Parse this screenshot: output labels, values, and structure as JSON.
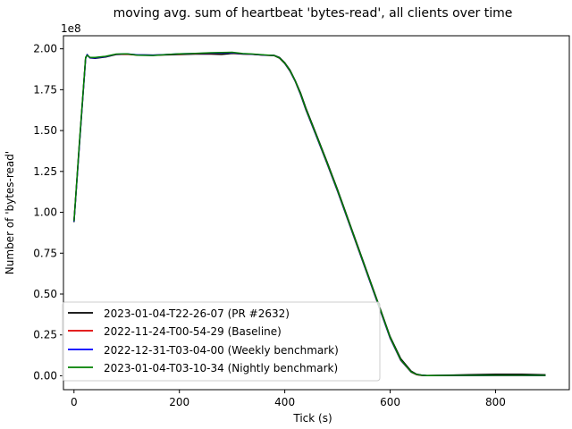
{
  "chart_data": {
    "type": "line",
    "title": "moving avg. sum of heartbeat 'bytes-read', all clients over time",
    "xlabel": "Tick (s)",
    "ylabel": "Number of 'bytes-read'",
    "y_offset_label": "1e8",
    "y_scale": 100000000,
    "xlim": [
      -20,
      940
    ],
    "ylim": [
      -8500000,
      208000000
    ],
    "x_ticks": [
      0,
      200,
      400,
      600,
      800
    ],
    "x_tick_labels": [
      "0",
      "200",
      "400",
      "600",
      "800"
    ],
    "y_ticks": [
      0,
      25000000,
      50000000,
      75000000,
      100000000,
      125000000,
      150000000,
      175000000,
      200000000
    ],
    "y_tick_labels": [
      "0.00",
      "0.25",
      "0.50",
      "0.75",
      "1.00",
      "1.25",
      "1.50",
      "1.75",
      "2.00"
    ],
    "grid": false,
    "legend_position": "lower-left",
    "series": [
      {
        "name": "2023-01-04-T22-26-07 (PR #2632)",
        "color": "#000000",
        "x": [
          0,
          10,
          22,
          25,
          30,
          40,
          60,
          80,
          100,
          120,
          150,
          180,
          200,
          230,
          260,
          280,
          300,
          320,
          340,
          360,
          380,
          390,
          400,
          410,
          420,
          430,
          440,
          460,
          480,
          500,
          520,
          540,
          560,
          580,
          600,
          620,
          640,
          650,
          660,
          670,
          680,
          700,
          750,
          800,
          850,
          895
        ],
        "y": [
          94000000,
          140000000,
          194000000,
          196500000,
          194500000,
          194200000,
          195000000,
          196500000,
          196800000,
          196300000,
          196200000,
          196300000,
          196500000,
          196800000,
          196800000,
          196600000,
          197200000,
          196800000,
          196700000,
          196200000,
          196000000,
          194700000,
          191500000,
          187000000,
          180500000,
          173000000,
          163800000,
          147500000,
          131000000,
          114000000,
          96000000,
          78000000,
          60000000,
          42000000,
          24000000,
          10500000,
          2800000,
          1000000,
          400000,
          200000,
          250000,
          300000,
          700000,
          900000,
          900000,
          600000
        ]
      },
      {
        "name": "2022-11-24-T00-54-29 (Baseline)",
        "color": "#e00000",
        "x": [
          0,
          10,
          22,
          25,
          30,
          40,
          60,
          80,
          100,
          120,
          150,
          180,
          200,
          230,
          260,
          280,
          300,
          320,
          340,
          360,
          380,
          390,
          400,
          410,
          420,
          430,
          440,
          460,
          480,
          500,
          520,
          540,
          560,
          580,
          600,
          620,
          640,
          650,
          660,
          670,
          680,
          700,
          750,
          800,
          850,
          895
        ],
        "y": [
          94500000,
          141000000,
          194500000,
          196200000,
          194700000,
          194600000,
          195300000,
          196600000,
          196700000,
          196200000,
          196000000,
          196500000,
          196800000,
          197000000,
          197300000,
          197400000,
          197500000,
          196900000,
          196600000,
          196100000,
          195800000,
          194300000,
          191000000,
          186300000,
          180000000,
          172000000,
          162800000,
          146500000,
          130000000,
          113000000,
          95000000,
          77000000,
          59000000,
          41000000,
          23000000,
          9500000,
          2200000,
          700000,
          200000,
          100000,
          100000,
          150000,
          150000,
          200000,
          200000,
          150000
        ]
      },
      {
        "name": "2022-12-31-T03-04-00 (Weekly benchmark)",
        "color": "#0000ff",
        "x": [
          0,
          10,
          22,
          25,
          30,
          40,
          60,
          80,
          100,
          120,
          150,
          180,
          200,
          230,
          260,
          280,
          300,
          320,
          340,
          360,
          380,
          390,
          400,
          410,
          420,
          430,
          440,
          460,
          480,
          500,
          520,
          540,
          560,
          580,
          600,
          620,
          640,
          650,
          660,
          670,
          680,
          700,
          750,
          800,
          850,
          895
        ],
        "y": [
          94300000,
          140500000,
          194300000,
          196400000,
          194600000,
          194500000,
          195200000,
          196700000,
          196900000,
          196300000,
          196100000,
          196600000,
          196900000,
          197100000,
          197400000,
          197500000,
          197600000,
          197000000,
          196700000,
          196200000,
          195900000,
          194400000,
          191100000,
          186400000,
          180100000,
          172100000,
          162900000,
          146600000,
          130100000,
          113100000,
          95100000,
          77100000,
          59100000,
          41100000,
          23100000,
          9600000,
          2300000,
          800000,
          300000,
          150000,
          150000,
          200000,
          200000,
          250000,
          250000,
          200000
        ]
      },
      {
        "name": "2023-01-04-T03-10-34 (Nightly benchmark)",
        "color": "#008000",
        "x": [
          0,
          10,
          22,
          25,
          30,
          40,
          60,
          80,
          100,
          120,
          150,
          180,
          200,
          230,
          260,
          280,
          300,
          320,
          340,
          360,
          380,
          390,
          400,
          410,
          420,
          430,
          440,
          460,
          480,
          500,
          520,
          540,
          560,
          580,
          600,
          620,
          640,
          650,
          660,
          670,
          680,
          700,
          750,
          800,
          850,
          895
        ],
        "y": [
          94600000,
          141500000,
          194800000,
          196000000,
          194800000,
          194700000,
          195400000,
          196800000,
          196900000,
          196100000,
          195900000,
          196600000,
          196900000,
          197200000,
          197600000,
          197700000,
          197900000,
          197100000,
          196800000,
          196300000,
          195900000,
          194400000,
          191200000,
          186600000,
          180300000,
          172400000,
          163200000,
          147000000,
          130500000,
          113500000,
          95500000,
          77500000,
          59500000,
          41500000,
          23500000,
          9800000,
          2400000,
          800000,
          300000,
          150000,
          150000,
          200000,
          250000,
          300000,
          300000,
          250000
        ]
      }
    ]
  }
}
